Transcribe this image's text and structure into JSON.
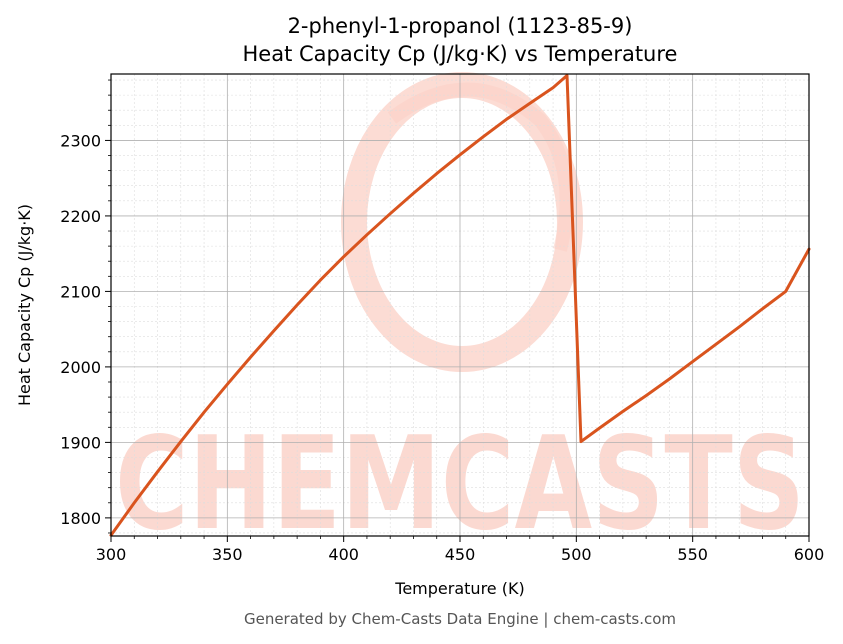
{
  "chart_data": {
    "type": "line",
    "title_line1": "2-phenyl-1-propanol (1123-85-9)",
    "title_line2": "Heat Capacity Cp (J/kg·K) vs Temperature",
    "xlabel": "Temperature (K)",
    "ylabel": "Heat Capacity Cp (J/kg·K)",
    "xlim": [
      300,
      600
    ],
    "ylim": [
      1776,
      2388
    ],
    "x_ticks": [
      300,
      350,
      400,
      450,
      500,
      550,
      600
    ],
    "y_ticks": [
      1800,
      1900,
      2000,
      2100,
      2200,
      2300
    ],
    "grid": true,
    "legend": "none",
    "series": [
      {
        "color": "#d9541e",
        "x": [
          300,
          310,
          320,
          330,
          340,
          350,
          360,
          370,
          380,
          390,
          400,
          410,
          420,
          430,
          440,
          450,
          460,
          470,
          480,
          490,
          496,
          502,
          510,
          520,
          530,
          540,
          550,
          560,
          570,
          580,
          590,
          600
        ],
        "y": [
          1777,
          1820,
          1861,
          1901,
          1940,
          1977,
          2013,
          2048,
          2082,
          2115,
          2146,
          2175,
          2203,
          2230,
          2256,
          2281,
          2305,
          2328,
          2349,
          2370,
          2386,
          1901,
          1919,
          1941,
          1962,
          1984,
          2007,
          2030,
          2053,
          2077,
          2100,
          2156
        ]
      }
    ]
  },
  "watermark": {
    "text": "CHEMCASTS",
    "color": "#fbd0c6"
  },
  "footer": "Generated by Chem-Casts Data Engine | chem-casts.com"
}
